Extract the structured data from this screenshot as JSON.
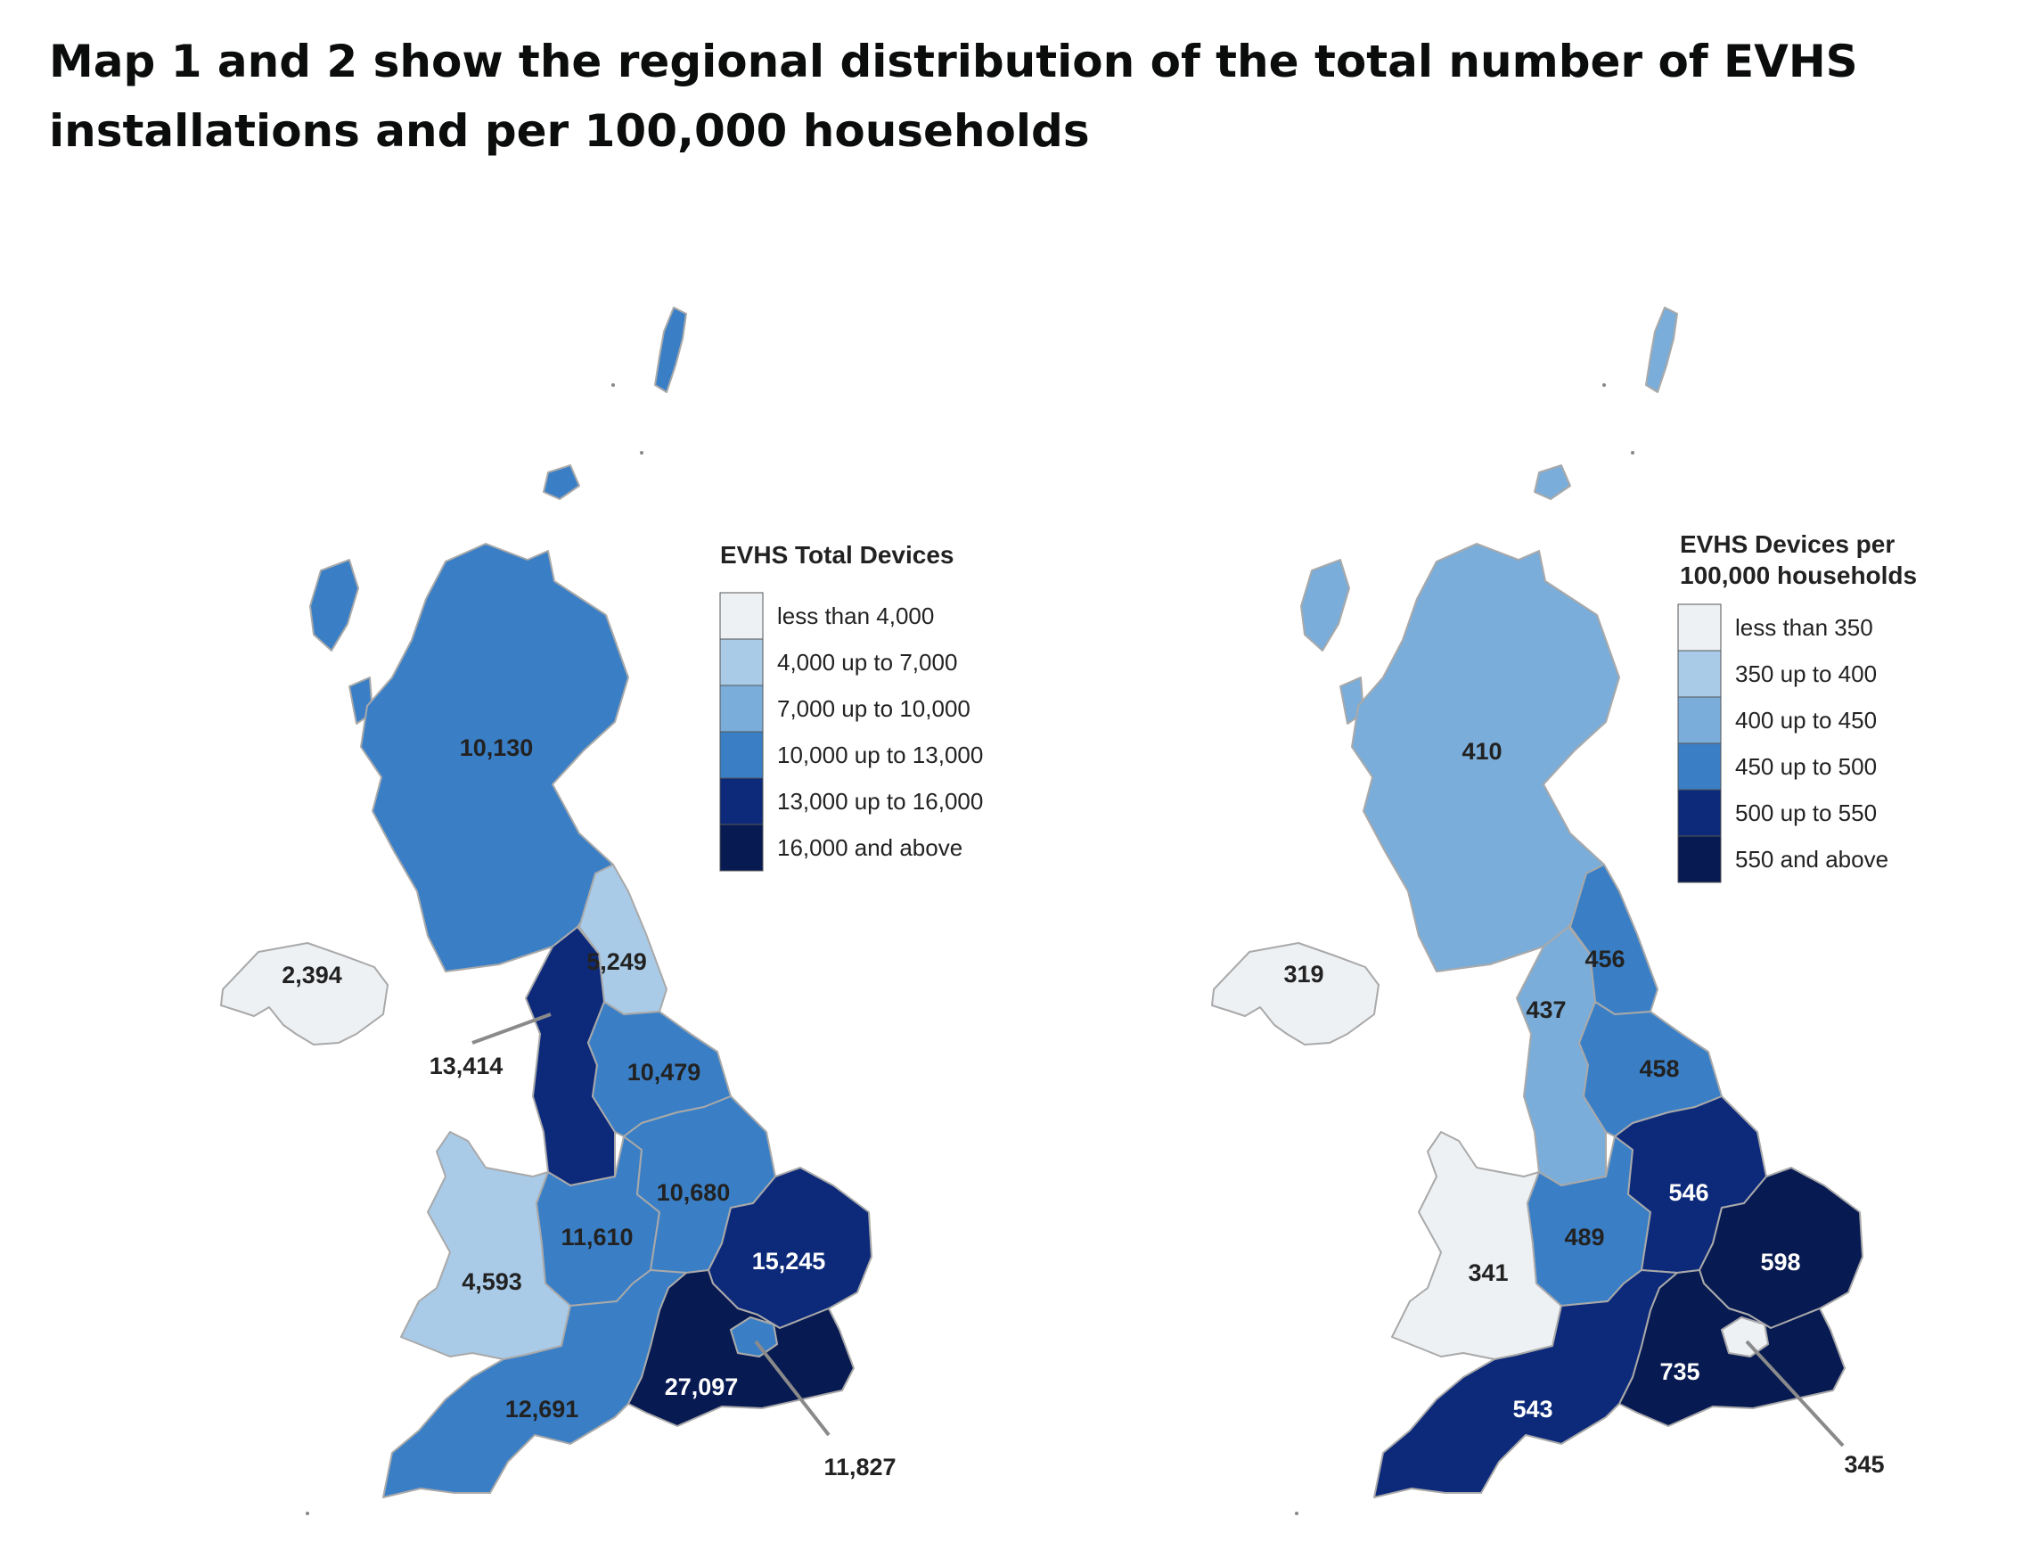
{
  "heading": "Map 1 and 2 show the regional distribution of the total number of EVHS installations and per 100,000 households",
  "colors": {
    "c0": "#eef1f4",
    "c1": "#a9cbe8",
    "c2": "#7aadd9",
    "c3": "#3a7fc6",
    "c4": "#0d2a7a",
    "c5": "#071a52",
    "border": "#a9a9a9",
    "leader": "#8a8a8a"
  },
  "map1": {
    "legend_title": "EVHS Total Devices",
    "legend": [
      "less than 4,000",
      "4,000 up to 7,000",
      "7,000 up to 10,000",
      "10,000 up to 13,000",
      "13,000 up to 16,000",
      "16,000 and above"
    ],
    "regions": {
      "scotland": "10,130",
      "northern_ireland": "2,394",
      "north_east": "5,249",
      "north_west": "13,414",
      "yorkshire": "10,479",
      "wales": "4,593",
      "west_midlands": "11,610",
      "east_midlands": "10,680",
      "east": "15,245",
      "london": "11,827",
      "south_east": "27,097",
      "south_west": "12,691"
    }
  },
  "map2": {
    "legend_title": [
      "EVHS Devices per",
      "100,000 households"
    ],
    "legend": [
      "less than 350",
      "350 up to 400",
      "400 up to 450",
      "450 up to 500",
      "500 up to 550",
      "550 and above"
    ],
    "regions": {
      "scotland": "410",
      "northern_ireland": "319",
      "north_east": "456",
      "north_west": "437",
      "yorkshire": "458",
      "wales": "341",
      "west_midlands": "489",
      "east_midlands": "546",
      "east": "598",
      "london": "345",
      "south_east": "735",
      "south_west": "543"
    }
  }
}
